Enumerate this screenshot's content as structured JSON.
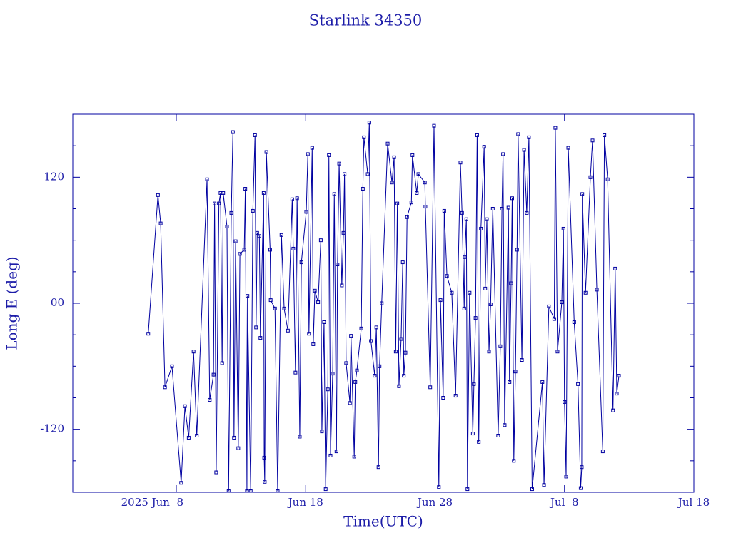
{
  "chart_data": {
    "type": "line",
    "title": "Starlink 34350",
    "x_label": "Time(UTC)",
    "y_label": "Long E (deg)",
    "color": "#0000a0",
    "markers": true,
    "grid": false,
    "xlim": [
      "2025-05-31T00:00",
      "2025-07-18T00:00"
    ],
    "xticks": [
      {
        "value": "2025-06-08T00:00",
        "label": "2025 Jun  8"
      },
      {
        "value": "2025-06-18T00:00",
        "label": "Jun 18"
      },
      {
        "value": "2025-06-28T00:00",
        "label": "Jun 28"
      },
      {
        "value": "2025-07-08T00:00",
        "label": "Jul  8"
      },
      {
        "value": "2025-07-18T00:00",
        "label": "Jul 18"
      }
    ],
    "ylim": [
      -180,
      180
    ],
    "yticks": [
      -120,
      {
        "value": 0,
        "label": "00"
      },
      120
    ],
    "yminor_ticks": [
      -150,
      -90,
      -60,
      -30,
      30,
      60,
      90,
      150
    ],
    "x": [
      "2025-06-05T20:00",
      "2025-06-06T14:00",
      "2025-06-06T19:00",
      "2025-06-07T03:00",
      "2025-06-07T16:00",
      "2025-06-08T09:00",
      "2025-06-08T16:00",
      "2025-06-08T23:00",
      "2025-06-09T08:00",
      "2025-06-09T14:00",
      "2025-06-10T09:00",
      "2025-06-10T14:00",
      "2025-06-10T21:00",
      "2025-06-10T23:00",
      "2025-06-11T02:00",
      "2025-06-11T07:00",
      "2025-06-11T10:00",
      "2025-06-11T13:00",
      "2025-06-11T15:00",
      "2025-06-11T22:00",
      "2025-06-12T01:00",
      "2025-06-12T06:00",
      "2025-06-12T09:00",
      "2025-06-12T11:00",
      "2025-06-12T14:00",
      "2025-06-12T19:00",
      "2025-06-12T22:00",
      "2025-06-13T06:00",
      "2025-06-13T08:00",
      "2025-06-13T11:00",
      "2025-06-13T12:00",
      "2025-06-13T18:00",
      "2025-06-13T22:00",
      "2025-06-14T02:00",
      "2025-06-14T04:00",
      "2025-06-14T06:00",
      "2025-06-14T10:00",
      "2025-06-14T12:00",
      "2025-06-14T18:00",
      "2025-06-14T19:00",
      "2025-06-14T20:00",
      "2025-06-14T23:00",
      "2025-06-15T06:00",
      "2025-06-15T07:00",
      "2025-06-15T15:00",
      "2025-06-15T20:00",
      "2025-06-16T03:00",
      "2025-06-16T08:00",
      "2025-06-16T15:00",
      "2025-06-16T23:00",
      "2025-06-17T01:00",
      "2025-06-17T05:00",
      "2025-06-17T08:00",
      "2025-06-17T13:00",
      "2025-06-17T16:00",
      "2025-06-18T01:00",
      "2025-06-18T04:00",
      "2025-06-18T06:00",
      "2025-06-18T12:00",
      "2025-06-18T14:00",
      "2025-06-18T17:00",
      "2025-06-18T23:00",
      "2025-06-19T04:00",
      "2025-06-19T06:00",
      "2025-06-19T10:00",
      "2025-06-19T13:00",
      "2025-06-19T17:00",
      "2025-06-19T19:00",
      "2025-06-19T22:00",
      "2025-06-20T02:00",
      "2025-06-20T05:00",
      "2025-06-20T09:00",
      "2025-06-20T11:00",
      "2025-06-20T14:00",
      "2025-06-20T19:00",
      "2025-06-20T22:00",
      "2025-06-21T00:00",
      "2025-06-21T03:00",
      "2025-06-21T10:00",
      "2025-06-21T12:00",
      "2025-06-21T18:00",
      "2025-06-21T20:00",
      "2025-06-21T23:00",
      "2025-06-22T07:00",
      "2025-06-22T10:00",
      "2025-06-22T12:00",
      "2025-06-22T19:00",
      "2025-06-22T22:00",
      "2025-06-23T01:00",
      "2025-06-23T08:00",
      "2025-06-23T11:00",
      "2025-06-23T15:00",
      "2025-06-23T17:00",
      "2025-06-23T21:00",
      "2025-06-24T08:00",
      "2025-06-24T16:00",
      "2025-06-24T20:00",
      "2025-06-24T23:00",
      "2025-06-25T02:00",
      "2025-06-25T05:00",
      "2025-06-25T09:00",
      "2025-06-25T12:00",
      "2025-06-25T14:00",
      "2025-06-25T17:00",
      "2025-06-25T20:00",
      "2025-06-26T04:00",
      "2025-06-26T06:00",
      "2025-06-26T14:00",
      "2025-06-26T17:00",
      "2025-06-27T05:00",
      "2025-06-27T06:00",
      "2025-06-27T15:00",
      "2025-06-27T22:00",
      "2025-06-28T07:00",
      "2025-06-28T10:00",
      "2025-06-28T15:00",
      "2025-06-28T17:00",
      "2025-06-28T22:00",
      "2025-06-29T07:00",
      "2025-06-29T14:00",
      "2025-06-29T23:00",
      "2025-06-30T02:00",
      "2025-06-30T06:00",
      "2025-06-30T07:00",
      "2025-06-30T10:00",
      "2025-06-30T12:00",
      "2025-06-30T16:00",
      "2025-06-30T22:00",
      "2025-07-01T00:00",
      "2025-07-01T03:00",
      "2025-07-01T06:00",
      "2025-07-01T09:00",
      "2025-07-01T13:00",
      "2025-07-01T19:00",
      "2025-07-01T21:00",
      "2025-07-02T00:00",
      "2025-07-02T04:00",
      "2025-07-02T07:00",
      "2025-07-02T11:00",
      "2025-07-02T21:00",
      "2025-07-03T01:00",
      "2025-07-03T04:00",
      "2025-07-03T06:00",
      "2025-07-03T09:00",
      "2025-07-03T16:00",
      "2025-07-03T18:00",
      "2025-07-03T21:00",
      "2025-07-03T23:00",
      "2025-07-04T02:00",
      "2025-07-04T05:00",
      "2025-07-04T08:00",
      "2025-07-04T10:00",
      "2025-07-04T17:00",
      "2025-07-04T21:00",
      "2025-07-05T02:00",
      "2025-07-05T06:00",
      "2025-07-05T12:00",
      "2025-07-06T07:00",
      "2025-07-06T10:00",
      "2025-07-06T19:00",
      "2025-07-07T05:00",
      "2025-07-07T07:00",
      "2025-07-07T11:00",
      "2025-07-07T19:00",
      "2025-07-07T22:00",
      "2025-07-08T00:00",
      "2025-07-08T03:00",
      "2025-07-08T07:00",
      "2025-07-08T18:00",
      "2025-07-09T01:00",
      "2025-07-09T06:00",
      "2025-07-09T08:00",
      "2025-07-09T09:00",
      "2025-07-09T15:00",
      "2025-07-10T00:00",
      "2025-07-10T04:00",
      "2025-07-10T12:00",
      "2025-07-10T23:00",
      "2025-07-11T02:00",
      "2025-07-11T08:00",
      "2025-07-11T18:00",
      "2025-07-11T22:00",
      "2025-07-12T01:00",
      "2025-07-12T05:00"
    ],
    "values": [
      -29,
      103,
      76,
      -80,
      -60,
      -171,
      -98,
      -128,
      -46,
      -126,
      118,
      -92,
      -68,
      95,
      -161,
      95,
      105,
      -57,
      105,
      73,
      -179,
      86,
      163,
      -128,
      59,
      -138,
      47,
      51,
      109,
      -179,
      7,
      -179,
      88,
      160,
      -23,
      67,
      64,
      -33,
      105,
      -147,
      -170,
      144,
      51,
      3,
      -5,
      -179,
      65,
      -5,
      -26,
      99,
      52,
      -66,
      100,
      -127,
      39,
      87,
      142,
      -29,
      148,
      -39,
      12,
      1,
      60,
      -122,
      -18,
      -177,
      -82,
      141,
      -145,
      -67,
      104,
      -141,
      37,
      133,
      17,
      67,
      123,
      -57,
      -95,
      -31,
      -146,
      -75,
      -64,
      -24,
      109,
      158,
      123,
      172,
      -36,
      -69,
      -23,
      -156,
      -60,
      0,
      152,
      115,
      139,
      -46,
      95,
      -79,
      -34,
      39,
      -69,
      -47,
      82,
      96,
      141,
      105,
      123,
      115,
      92,
      -80,
      169,
      -175,
      3,
      -90,
      88,
      26,
      10,
      -88,
      134,
      86,
      -5,
      44,
      80,
      -177,
      10,
      -124,
      -77,
      -14,
      160,
      -132,
      71,
      149,
      14,
      80,
      -46,
      -1,
      90,
      -126,
      -41,
      90,
      142,
      -116,
      91,
      -75,
      19,
      100,
      -150,
      -65,
      51,
      161,
      -54,
      146,
      86,
      158,
      -177,
      -75,
      -173,
      -3,
      -15,
      167,
      -46,
      1,
      71,
      -94,
      -165,
      148,
      -18,
      -77,
      -176,
      -156,
      104,
      10,
      120,
      155,
      13,
      -141,
      160,
      118,
      -102,
      33,
      -86,
      -69
    ]
  }
}
